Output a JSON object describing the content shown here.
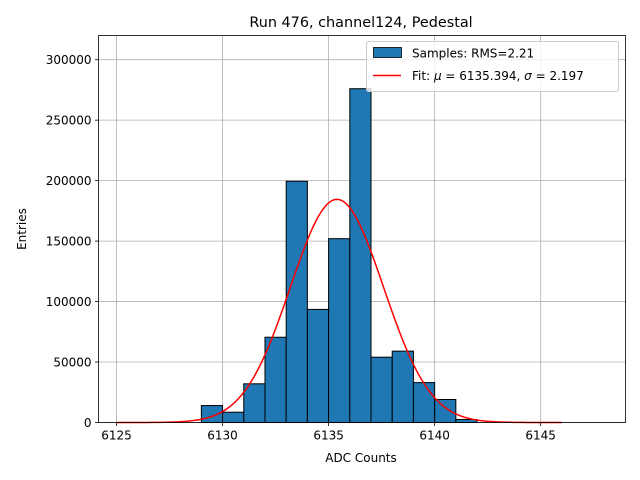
{
  "chart_data": {
    "type": "bar",
    "title": "Run 476, channel124, Pedestal",
    "xlabel": "ADC Counts",
    "ylabel": "Entries",
    "xlim": [
      6124.15,
      6149.0
    ],
    "ylim": [
      0,
      320000
    ],
    "grid": true,
    "legend_position": "top-right",
    "x_ticks": [
      6125,
      6130,
      6135,
      6140,
      6145
    ],
    "y_ticks": [
      0,
      50000,
      100000,
      150000,
      200000,
      250000,
      300000
    ],
    "x_tick_labels": [
      "6125",
      "6130",
      "6135",
      "6140",
      "6145"
    ],
    "y_tick_labels": [
      "0",
      "50000",
      "100000",
      "150000",
      "200000",
      "250000",
      "300000"
    ],
    "bin_width": 1,
    "histogram": {
      "name": "Samples: RMS=2.21",
      "color": "#1f77b4",
      "edgecolor": "#000000",
      "bins": [
        6129,
        6130,
        6131,
        6132,
        6133,
        6134,
        6135,
        6136,
        6137,
        6138,
        6139,
        6140,
        6141
      ],
      "values": [
        14000,
        8500,
        32000,
        70500,
        199500,
        93500,
        152000,
        276000,
        54000,
        59000,
        33000,
        19000,
        2500
      ]
    },
    "fit": {
      "name": "Fit: μ = 6135.394, σ = 2.197",
      "legend_prefix": "Fit: ",
      "legend_mu_symbol": "μ",
      "legend_mu_text": " = 6135.394, ",
      "legend_sigma_symbol": "σ",
      "legend_sigma_text": " = 2.197",
      "color": "#ff0000",
      "mu": 6135.394,
      "sigma": 2.197,
      "amplitude": 184500,
      "x_range": [
        6125,
        6146
      ]
    }
  }
}
